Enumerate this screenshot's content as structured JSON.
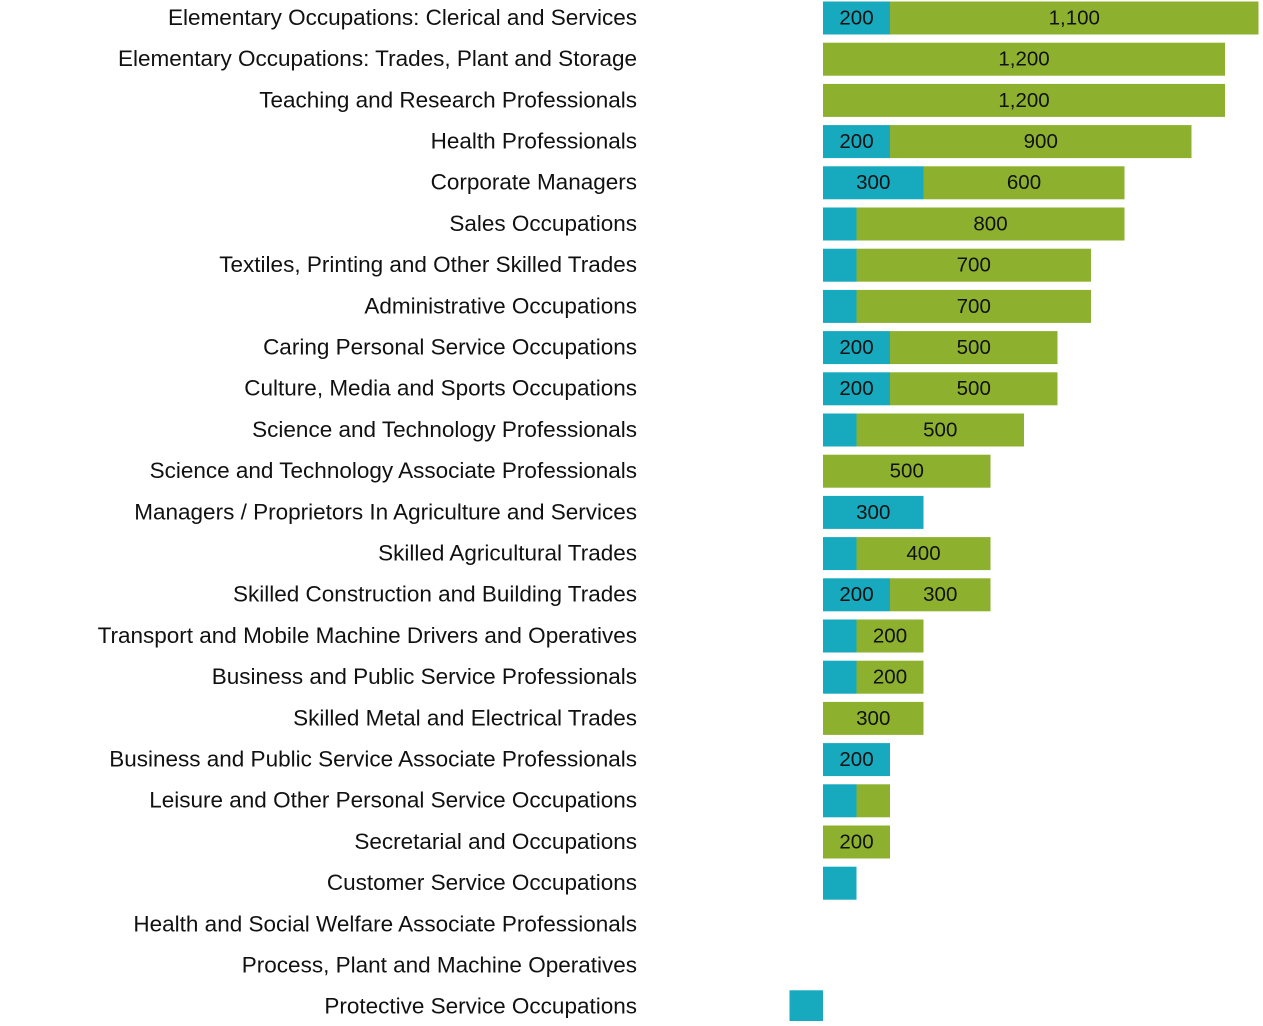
{
  "chart_data": {
    "type": "stacked-bar-horizontal",
    "categories": [
      "Elementary Occupations: Clerical and Services",
      "Elementary Occupations: Trades, Plant and Storage",
      "Teaching and Research Professionals",
      "Health Professionals",
      "Corporate Managers",
      "Sales Occupations",
      "Textiles, Printing and Other Skilled Trades",
      "Administrative Occupations",
      "Caring Personal Service Occupations",
      "Culture, Media and Sports Occupations",
      "Science and Technology Professionals",
      "Science and Technology Associate Professionals",
      "Managers / Proprietors In Agriculture and Services",
      "Skilled Agricultural Trades",
      "Skilled Construction and Building Trades",
      "Transport and Mobile Machine Drivers and Operatives",
      "Business and Public Service Professionals",
      "Skilled Metal and Electrical Trades",
      "Business and Public Service Associate Professionals",
      "Leisure and Other Personal Service Occupations",
      "Secretarial and Occupations",
      "Customer Service Occupations",
      "Health and Social Welfare Associate Professionals",
      "Process, Plant and Machine Operatives",
      "Protective Service Occupations"
    ],
    "series": [
      {
        "color": "#17a9bd",
        "values": [
          200,
          0,
          0,
          200,
          300,
          100,
          100,
          100,
          200,
          200,
          100,
          0,
          300,
          100,
          200,
          100,
          100,
          0,
          200,
          100,
          0,
          100,
          0,
          0,
          -100
        ],
        "value_labels": [
          "200",
          null,
          null,
          "200",
          "300",
          null,
          null,
          null,
          "200",
          "200",
          null,
          null,
          "300",
          null,
          "200",
          null,
          null,
          null,
          "200",
          null,
          null,
          null,
          null,
          null,
          null
        ]
      },
      {
        "color": "#8db12e",
        "values": [
          1100,
          1200,
          1200,
          900,
          600,
          800,
          700,
          700,
          500,
          500,
          500,
          500,
          0,
          400,
          300,
          200,
          200,
          300,
          0,
          100,
          200,
          0,
          0,
          0,
          0
        ],
        "value_labels": [
          "1,100",
          "1,200",
          "1,200",
          "900",
          "600",
          "800",
          "700",
          "700",
          "500",
          "500",
          "500",
          "500",
          null,
          "400",
          "300",
          "200",
          "200",
          "300",
          null,
          null,
          "200",
          null,
          null,
          null,
          null
        ]
      }
    ],
    "xlim": [
      -100,
      1300
    ]
  }
}
